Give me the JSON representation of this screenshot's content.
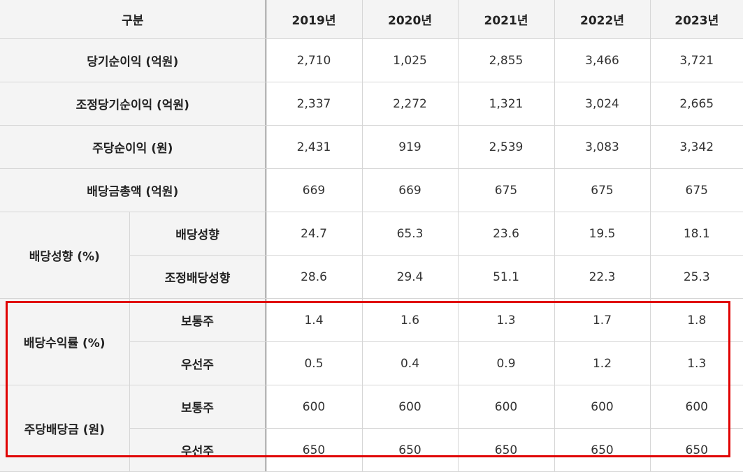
{
  "header": {
    "category": "구분",
    "years": [
      "2019년",
      "2020년",
      "2021년",
      "2022년",
      "2023년"
    ]
  },
  "rows": [
    {
      "label": "당기순이익 (억원)",
      "values": [
        "2,710",
        "1,025",
        "2,855",
        "3,466",
        "3,721"
      ]
    },
    {
      "label": "조정당기순이익 (억원)",
      "values": [
        "2,337",
        "2,272",
        "1,321",
        "3,024",
        "2,665"
      ]
    },
    {
      "label": "주당순이익 (원)",
      "values": [
        "2,431",
        "919",
        "2,539",
        "3,083",
        "3,342"
      ]
    },
    {
      "label": "배당금총액 (억원)",
      "values": [
        "669",
        "669",
        "675",
        "675",
        "675"
      ]
    }
  ],
  "groups": [
    {
      "label": "배당성향 (%)",
      "subrows": [
        {
          "label": "배당성향",
          "values": [
            "24.7",
            "65.3",
            "23.6",
            "19.5",
            "18.1"
          ]
        },
        {
          "label": "조정배당성향",
          "values": [
            "28.6",
            "29.4",
            "51.1",
            "22.3",
            "25.3"
          ]
        }
      ]
    },
    {
      "label": "배당수익률 (%)",
      "subrows": [
        {
          "label": "보통주",
          "values": [
            "1.4",
            "1.6",
            "1.3",
            "1.7",
            "1.8"
          ]
        },
        {
          "label": "우선주",
          "values": [
            "0.5",
            "0.4",
            "0.9",
            "1.2",
            "1.3"
          ]
        }
      ]
    },
    {
      "label": "주당배당금 (원)",
      "subrows": [
        {
          "label": "보통주",
          "values": [
            "600",
            "600",
            "600",
            "600",
            "600"
          ]
        },
        {
          "label": "우선주",
          "values": [
            "650",
            "650",
            "650",
            "650",
            "650"
          ]
        }
      ]
    }
  ],
  "highlight": {
    "color": "#e00000"
  }
}
